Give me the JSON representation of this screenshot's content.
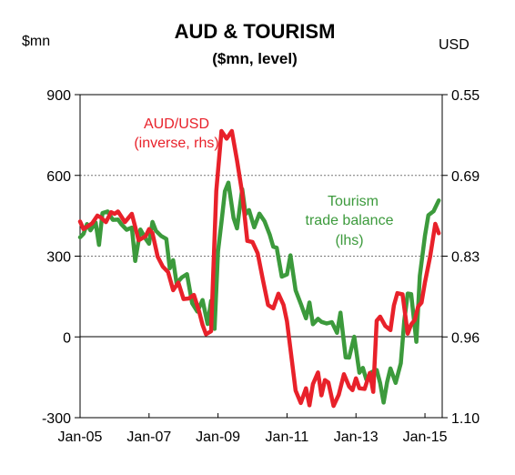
{
  "chart_data": {
    "type": "line",
    "title": "AUD & TOURISM",
    "subtitle": "($mn, level)",
    "left_unit": "$mn",
    "right_unit": "USD",
    "x_ticks": [
      "Jan-05",
      "Jan-07",
      "Jan-09",
      "Jan-11",
      "Jan-13",
      "Jan-15"
    ],
    "x_range": [
      2005.0,
      2015.5
    ],
    "y_left": {
      "ticks": [
        "900",
        "600",
        "300",
        "0",
        "-300"
      ],
      "range": [
        -300,
        900
      ]
    },
    "y_right": {
      "ticks": [
        "0.55",
        "0.69",
        "0.83",
        "0.96",
        "1.10"
      ],
      "range": [
        0.55,
        1.1
      ],
      "inverted": true
    },
    "grid": "dashed horizontal",
    "series": [
      {
        "name": "AUD/USD (inverse, rhs)",
        "label_lines": [
          "AUD/USD",
          "(inverse, rhs)"
        ],
        "color": "#e8212a",
        "axis": "right",
        "x": [
          2005.0,
          2005.1,
          2005.2,
          2005.35,
          2005.5,
          2005.6,
          2005.75,
          2005.9,
          2006.0,
          2006.1,
          2006.3,
          2006.5,
          2006.7,
          2006.9,
          2007.0,
          2007.1,
          2007.25,
          2007.4,
          2007.55,
          2007.7,
          2007.85,
          2008.0,
          2008.15,
          2008.3,
          2008.45,
          2008.55,
          2008.65,
          2008.8,
          2008.95,
          2009.1,
          2009.25,
          2009.4,
          2009.55,
          2009.7,
          2009.85,
          2010.0,
          2010.15,
          2010.3,
          2010.45,
          2010.6,
          2010.75,
          2010.9,
          2011.0,
          2011.1,
          2011.25,
          2011.4,
          2011.55,
          2011.65,
          2011.75,
          2011.9,
          2012.0,
          2012.1,
          2012.2,
          2012.35,
          2012.5,
          2012.65,
          2012.8,
          2012.9,
          2013.0,
          2013.1,
          2013.25,
          2013.4,
          2013.5,
          2013.6,
          2013.7,
          2013.85,
          2014.0,
          2014.1,
          2014.2,
          2014.35,
          2014.5,
          2014.6,
          2014.7,
          2014.8,
          2014.9,
          2015.0,
          2015.15,
          2015.3,
          2015.4
        ],
        "y": [
          0.766,
          0.779,
          0.775,
          0.769,
          0.756,
          0.759,
          0.767,
          0.75,
          0.753,
          0.749,
          0.767,
          0.753,
          0.798,
          0.791,
          0.779,
          0.786,
          0.826,
          0.843,
          0.852,
          0.883,
          0.87,
          0.898,
          0.897,
          0.891,
          0.919,
          0.942,
          0.958,
          0.953,
          0.714,
          0.612,
          0.625,
          0.612,
          0.662,
          0.718,
          0.799,
          0.801,
          0.82,
          0.865,
          0.908,
          0.914,
          0.889,
          0.908,
          0.936,
          0.983,
          1.054,
          1.075,
          1.05,
          1.079,
          1.043,
          1.023,
          1.062,
          1.036,
          1.04,
          1.08,
          1.061,
          1.026,
          1.047,
          1.053,
          1.033,
          1.05,
          1.051,
          1.024,
          1.056,
          0.935,
          0.928,
          0.944,
          0.951,
          0.909,
          0.888,
          0.89,
          0.957,
          0.941,
          0.934,
          0.911,
          0.904,
          0.87,
          0.826,
          0.77,
          0.786
        ]
      },
      {
        "name": "Tourism trade balance (lhs)",
        "label_lines": [
          "Tourism",
          "trade balance",
          "(lhs)"
        ],
        "color": "#3c9a3c",
        "axis": "left",
        "x": [
          2005.0,
          2005.1,
          2005.2,
          2005.3,
          2005.45,
          2005.55,
          2005.65,
          2005.8,
          2005.95,
          2006.1,
          2006.2,
          2006.35,
          2006.5,
          2006.6,
          2006.75,
          2006.9,
          2007.0,
          2007.1,
          2007.2,
          2007.35,
          2007.5,
          2007.6,
          2007.7,
          2007.8,
          2007.95,
          2008.1,
          2008.25,
          2008.4,
          2008.55,
          2008.7,
          2008.8,
          2008.9,
          2009.0,
          2009.1,
          2009.2,
          2009.3,
          2009.45,
          2009.55,
          2009.7,
          2009.8,
          2009.9,
          2010.05,
          2010.2,
          2010.35,
          2010.5,
          2010.6,
          2010.7,
          2010.85,
          2011.0,
          2011.1,
          2011.25,
          2011.4,
          2011.55,
          2011.65,
          2011.75,
          2011.9,
          2012.0,
          2012.15,
          2012.3,
          2012.45,
          2012.55,
          2012.7,
          2012.8,
          2012.95,
          2013.1,
          2013.2,
          2013.3,
          2013.45,
          2013.6,
          2013.7,
          2013.8,
          2013.9,
          2014.0,
          2014.15,
          2014.3,
          2014.4,
          2014.5,
          2014.6,
          2014.75,
          2014.85,
          2015.0,
          2015.1,
          2015.25,
          2015.4
        ],
        "y": [
          370,
          383,
          419,
          396,
          425,
          342,
          460,
          466,
          435,
          436,
          418,
          398,
          406,
          282,
          399,
          365,
          346,
          427,
          394,
          375,
          364,
          255,
          285,
          199,
          221,
          233,
          125,
          94,
          137,
          48,
          134,
          30,
          318,
          426,
          541,
          573,
          442,
          403,
          549,
          456,
          471,
          407,
          458,
          429,
          379,
          335,
          331,
          224,
          232,
          303,
          173,
          123,
          69,
          128,
          47,
          67,
          56,
          50,
          55,
          15,
          90,
          -76,
          -77,
          1,
          -133,
          -115,
          -158,
          -131,
          -123,
          -172,
          -244,
          -169,
          -117,
          -171,
          -98,
          60,
          161,
          159,
          -18,
          227,
          375,
          452,
          467,
          507
        ]
      }
    ]
  }
}
